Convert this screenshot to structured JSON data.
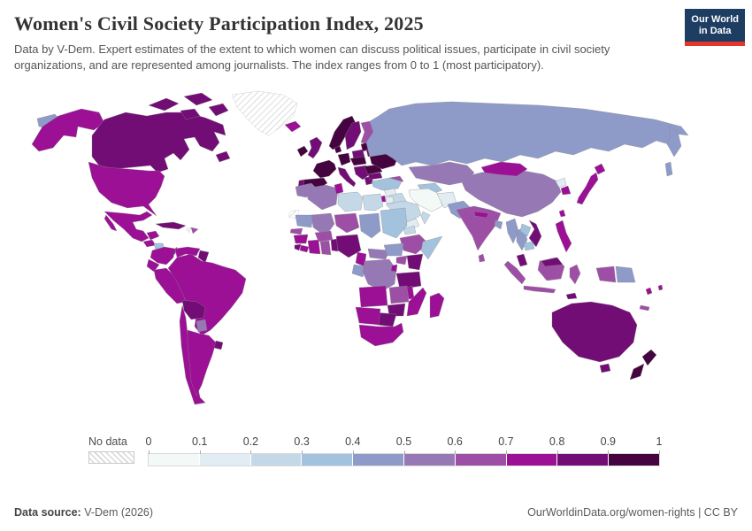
{
  "header": {
    "title": "Women's Civil Society Participation Index, 2025",
    "subtitle": "Data by V-Dem. Expert estimates of the extent to which women can discuss political issues, participate in civil society organizations, and are represented among journalists. The index ranges from 0 to 1 (most participatory).",
    "logo": {
      "line1": "Our World",
      "line2": "in Data",
      "bg": "#1d3d63",
      "accent": "#e0362c"
    }
  },
  "legend": {
    "no_data_label": "No data",
    "tick_labels": [
      "0",
      "0.1",
      "0.2",
      "0.3",
      "0.4",
      "0.5",
      "0.6",
      "0.7",
      "0.8",
      "0.9",
      "1"
    ],
    "bin_colors": [
      "#f2f9f7",
      "#e1edf3",
      "#c4d8e8",
      "#a3c2dd",
      "#8e9ac8",
      "#9678b5",
      "#9d4fa6",
      "#9b1095",
      "#720d76",
      "#45043f"
    ]
  },
  "footer": {
    "source_label": "Data source:",
    "source_value": " V-Dem (2026)",
    "link_text": "OurWorldinData.org/women-rights",
    "license_text": " | CC BY"
  },
  "chart_data": {
    "type": "choropleth",
    "title": "Women's Civil Society Participation Index, 2025",
    "unit_range": [
      0,
      1
    ],
    "legend_bins": [
      "0–0.1",
      "0.1–0.2",
      "0.2–0.3",
      "0.3–0.4",
      "0.4–0.5",
      "0.5–0.6",
      "0.6–0.7",
      "0.7–0.8",
      "0.8–0.9",
      "0.9–1"
    ],
    "no_data": [
      "greenland",
      "western_sahara",
      "haiti"
    ],
    "regions": {
      "russia": 0.45,
      "canada": 0.85,
      "usa": 0.75,
      "mexico": 0.75,
      "guatemala": 0.75,
      "nicaragua": 0.35,
      "panama": 0.75,
      "cuba": 0.85,
      "dominican_republic": 0.65,
      "colombia": 0.75,
      "venezuela": 0.75,
      "guyana": 0.85,
      "ecuador": 0.75,
      "peru": 0.75,
      "brazil": 0.75,
      "bolivia": 0.85,
      "paraguay": 0.55,
      "chile": 0.75,
      "argentina": 0.75,
      "uruguay": 0.85,
      "iceland": 0.75,
      "ireland": 0.95,
      "united_kingdom": 0.85,
      "norway": 0.95,
      "sweden": 0.85,
      "finland": 0.65,
      "denmark": 0.95,
      "baltics": 0.95,
      "belarus": 0.85,
      "poland": 0.85,
      "germany": 0.95,
      "france": 0.95,
      "spain": 0.95,
      "portugal": 0.85,
      "italy": 0.85,
      "central_europe": 0.95,
      "balkans": 0.85,
      "greece": 0.85,
      "romania": 0.95,
      "bulgaria": 0.85,
      "ukraine": 0.95,
      "kazakhstan": 0.55,
      "uzbekistan": 0.35,
      "turkmenistan": 0.35,
      "kyrgyzstan_tajikistan": 0.45,
      "caucasus": 0.65,
      "turkey": 0.35,
      "syria": 0.15,
      "iraq": 0.25,
      "israel": 0.75,
      "jordan": 0.15,
      "saudi_arabia": 0.25,
      "yemen": 0.15,
      "oman": 0.25,
      "iran": 0.05,
      "afghanistan": 0.15,
      "pakistan": 0.45,
      "india": 0.65,
      "nepal": 0.75,
      "bangladesh": 0.45,
      "sri_lanka": 0.65,
      "china": 0.55,
      "mongolia": 0.75,
      "north_korea": 0.15,
      "south_korea": 0.75,
      "japan": 0.75,
      "taiwan": 0.75,
      "myanmar": 0.45,
      "thailand": 0.45,
      "laos": 0.35,
      "vietnam": 0.85,
      "cambodia": 0.35,
      "malaysia": 0.85,
      "indonesia": 0.65,
      "philippines": 0.75,
      "timor_leste": 0.85,
      "papua_new_guinea": 0.45,
      "australia": 0.85,
      "new_zealand": 0.95,
      "fiji": 0.75,
      "new_caledonia": 0.65,
      "morocco": 0.55,
      "algeria": 0.55,
      "tunisia": 0.75,
      "libya": 0.25,
      "egypt": 0.25,
      "mauritania": 0.45,
      "mali": 0.55,
      "senegal": 0.65,
      "guinea": 0.75,
      "sierra_leone": 0.85,
      "liberia": 0.75,
      "ivory_coast": 0.75,
      "ghana": 0.65,
      "togo_benin": 0.85,
      "burkina_faso": 0.65,
      "niger": 0.65,
      "nigeria": 0.85,
      "chad": 0.45,
      "sudan": 0.35,
      "eritrea": 0.25,
      "ethiopia": 0.65,
      "somalia": 0.35,
      "cameroon": 0.75,
      "central_african_republic": 0.55,
      "south_sudan": 0.45,
      "gabon_congo": 0.45,
      "dr_congo": 0.55,
      "uganda": 0.65,
      "kenya": 0.85,
      "rwanda_burundi": 0.75,
      "tanzania": 0.85,
      "angola": 0.75,
      "zambia": 0.65,
      "malawi": 0.75,
      "mozambique": 0.75,
      "zimbabwe": 0.85,
      "botswana": 0.85,
      "namibia": 0.75,
      "south_africa": 0.75,
      "madagascar": 0.75
    }
  }
}
